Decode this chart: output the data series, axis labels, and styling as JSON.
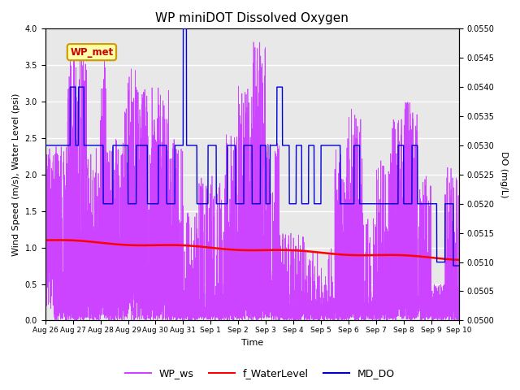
{
  "title": "WP miniDOT Dissolved Oxygen",
  "xlabel": "Time",
  "ylabel_left": "Wind Speed (m/s), Water Level (psi)",
  "ylabel_right": "DO (mg/L)",
  "ylim_left": [
    0.0,
    4.0
  ],
  "ylim_right": [
    0.05,
    0.055
  ],
  "background_color": "#e8e8e8",
  "figure_facecolor": "#ffffff",
  "legend_entries": [
    "WP_ws",
    "f_WaterLevel",
    "MD_DO"
  ],
  "legend_colors": [
    "#cc44ff",
    "#ff0000",
    "#0000cc"
  ],
  "annotation_text": "WP_met",
  "annotation_facecolor": "#ffffaa",
  "annotation_edgecolor": "#cc9900",
  "annotation_textcolor": "#cc0000",
  "wp_ws_color": "#cc44ff",
  "f_water_color": "#ff0000",
  "md_do_color": "#0000dd",
  "xtick_labels": [
    "Aug 26",
    "Aug 27",
    "Aug 28",
    "Aug 29",
    "Aug 30",
    "Aug 31",
    "Sep 1",
    "Sep 2",
    "Sep 3",
    "Sep 4",
    "Sep 5",
    "Sep 6",
    "Sep 7",
    "Sep 8",
    "Sep 9",
    "Sep 10"
  ],
  "n": 5000,
  "seed": 7
}
